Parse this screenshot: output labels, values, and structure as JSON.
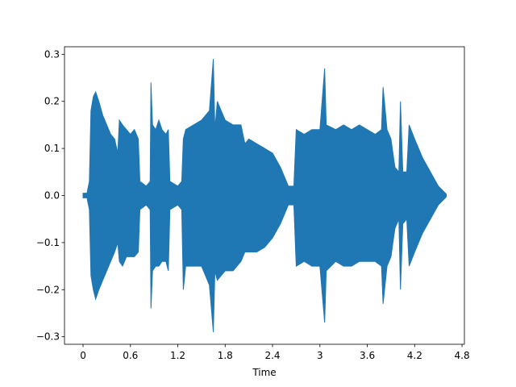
{
  "chart_data": {
    "type": "waveform",
    "xlabel": "Time",
    "color": "#1f77b4",
    "x": [
      0,
      0.05,
      0.08,
      0.1,
      0.13,
      0.16,
      0.2,
      0.25,
      0.3,
      0.35,
      0.4,
      0.44,
      0.46,
      0.5,
      0.55,
      0.6,
      0.65,
      0.7,
      0.72,
      0.8,
      0.85,
      0.86,
      0.88,
      0.92,
      0.96,
      1.0,
      1.05,
      1.08,
      1.1,
      1.2,
      1.25,
      1.27,
      1.3,
      1.4,
      1.5,
      1.6,
      1.65,
      1.67,
      1.7,
      1.8,
      1.9,
      2.0,
      2.05,
      2.1,
      2.2,
      2.3,
      2.4,
      2.5,
      2.6,
      2.67,
      2.7,
      2.8,
      2.9,
      3.0,
      3.06,
      3.08,
      3.2,
      3.3,
      3.4,
      3.5,
      3.6,
      3.7,
      3.78,
      3.8,
      3.85,
      3.9,
      3.95,
      4.0,
      4.02,
      4.05,
      4.1,
      4.13,
      4.2,
      4.3,
      4.4,
      4.5,
      4.6
    ],
    "max": [
      0.005,
      0.005,
      0.03,
      0.18,
      0.21,
      0.22,
      0.2,
      0.17,
      0.15,
      0.13,
      0.12,
      0.09,
      0.16,
      0.15,
      0.14,
      0.13,
      0.14,
      0.12,
      0.03,
      0.02,
      0.03,
      0.24,
      0.15,
      0.14,
      0.16,
      0.14,
      0.13,
      0.14,
      0.03,
      0.02,
      0.03,
      0.12,
      0.14,
      0.15,
      0.16,
      0.18,
      0.29,
      0.14,
      0.2,
      0.16,
      0.15,
      0.15,
      0.11,
      0.12,
      0.11,
      0.1,
      0.09,
      0.06,
      0.02,
      0.02,
      0.14,
      0.13,
      0.14,
      0.14,
      0.27,
      0.15,
      0.14,
      0.15,
      0.14,
      0.15,
      0.14,
      0.13,
      0.14,
      0.23,
      0.14,
      0.12,
      0.06,
      0.05,
      0.2,
      0.05,
      0.05,
      0.15,
      0.12,
      0.08,
      0.05,
      0.02,
      0.003
    ],
    "min": [
      -0.005,
      -0.005,
      -0.03,
      -0.17,
      -0.2,
      -0.22,
      -0.2,
      -0.18,
      -0.16,
      -0.14,
      -0.12,
      -0.1,
      -0.14,
      -0.15,
      -0.13,
      -0.13,
      -0.13,
      -0.12,
      -0.03,
      -0.02,
      -0.03,
      -0.24,
      -0.16,
      -0.15,
      -0.15,
      -0.14,
      -0.14,
      -0.16,
      -0.03,
      -0.02,
      -0.03,
      -0.2,
      -0.15,
      -0.15,
      -0.15,
      -0.19,
      -0.29,
      -0.16,
      -0.18,
      -0.16,
      -0.16,
      -0.14,
      -0.12,
      -0.12,
      -0.12,
      -0.11,
      -0.09,
      -0.06,
      -0.02,
      -0.02,
      -0.15,
      -0.14,
      -0.15,
      -0.15,
      -0.27,
      -0.16,
      -0.14,
      -0.15,
      -0.15,
      -0.14,
      -0.14,
      -0.14,
      -0.15,
      -0.23,
      -0.15,
      -0.13,
      -0.07,
      -0.05,
      -0.2,
      -0.06,
      -0.05,
      -0.15,
      -0.12,
      -0.08,
      -0.05,
      -0.02,
      -0.003
    ],
    "xlim": [
      -0.235,
      4.83
    ],
    "ylim": [
      -0.316,
      0.316
    ],
    "xticks": [
      0,
      0.6,
      1.2,
      1.8,
      2.4,
      3,
      3.6,
      4.2,
      4.8
    ],
    "yticks": [
      {
        "value": -0.3,
        "label": "−0.3"
      },
      {
        "value": -0.2,
        "label": "−0.2"
      },
      {
        "value": -0.1,
        "label": "−0.1"
      },
      {
        "value": 0,
        "label": "0.0"
      },
      0.1,
      0.2,
      0.3
    ]
  }
}
